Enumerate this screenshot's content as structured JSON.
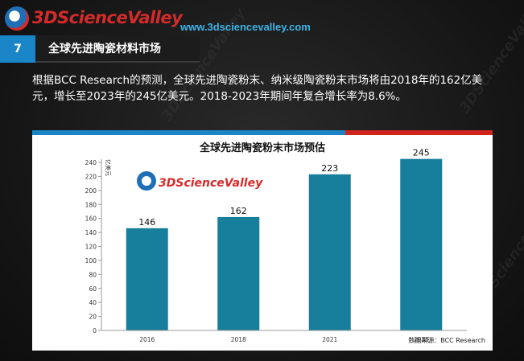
{
  "header": {
    "logo_text": "3DScienceValley",
    "url": "www.3dsciencevalley.com",
    "section_number": "7",
    "section_title": "全球先进陶瓷材料市场"
  },
  "description": "根据BCC Research的预测，全球先进陶瓷粉末、纳米级陶瓷粉末市场将由2018年的162亿美元，增长至2023年的245亿美元。2018-2023年期间年复合增长率为8.6%。",
  "colors": {
    "accent_blue": "#1a86c7",
    "accent_red": "#d0251f",
    "bar": "#177e9b"
  },
  "chart_data": {
    "type": "bar",
    "title": "全球先进陶瓷粉末市场预估",
    "ylabel": "亿美元",
    "xlabel": "",
    "categories": [
      "2016",
      "2018",
      "2021",
      "2023"
    ],
    "values": [
      146,
      162,
      223,
      245
    ],
    "ylim": [
      0,
      240
    ],
    "yticks": [
      0,
      20,
      40,
      60,
      80,
      100,
      120,
      140,
      160,
      180,
      200,
      220,
      240
    ],
    "source": "数据来源：BCC Research",
    "chart_logo": "3DScienceValley",
    "grid": false
  }
}
